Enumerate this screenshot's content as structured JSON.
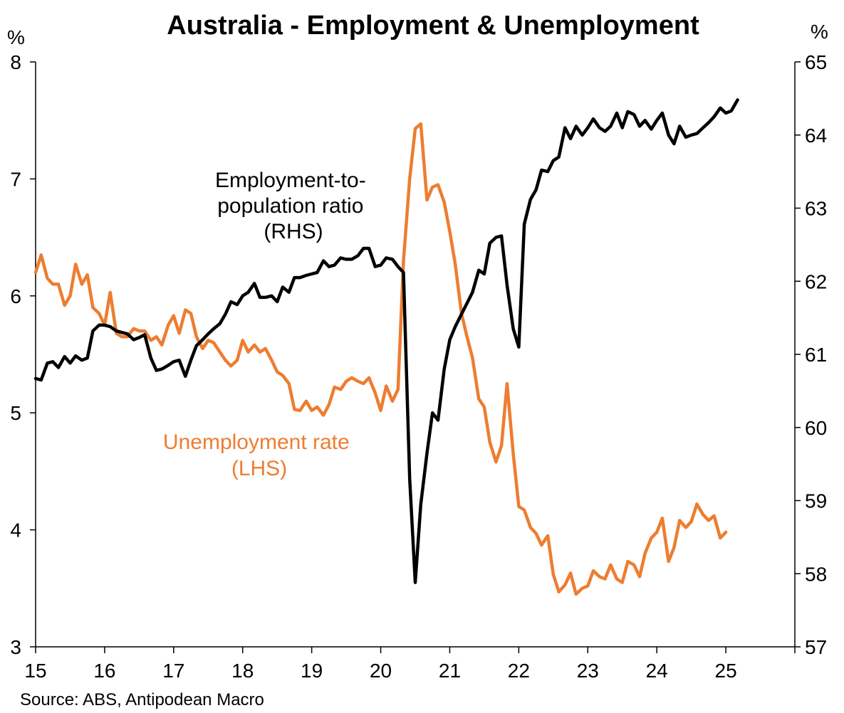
{
  "chart_data": {
    "type": "line",
    "title": "Australia - Employment & Unemployment",
    "source": "Source: ABS, Antipodean Macro",
    "left_axis": {
      "unit": "%",
      "ylim": [
        3,
        8
      ],
      "ticks": [
        3,
        4,
        5,
        6,
        7,
        8
      ]
    },
    "right_axis": {
      "unit": "%",
      "ylim": [
        57,
        65
      ],
      "ticks": [
        57,
        58,
        59,
        60,
        61,
        62,
        63,
        64,
        65
      ]
    },
    "x_axis": {
      "xlim": [
        15,
        26
      ],
      "tick_labels": [
        "15",
        "16",
        "17",
        "18",
        "19",
        "20",
        "21",
        "22",
        "23",
        "24",
        "25"
      ],
      "tick_values": [
        15,
        16,
        17,
        18,
        19,
        20,
        21,
        22,
        23,
        24,
        25
      ]
    },
    "grid": false,
    "series": [
      {
        "name": "Employment-to-population ratio (RHS)",
        "label_lines": [
          "Employment-to-",
          "population ratio",
          "(RHS)"
        ],
        "axis": "right",
        "color": "#000000",
        "points": [
          [
            15.0,
            60.67
          ],
          [
            15.08,
            60.65
          ],
          [
            15.17,
            60.88
          ],
          [
            15.25,
            60.9
          ],
          [
            15.33,
            60.82
          ],
          [
            15.42,
            60.97
          ],
          [
            15.5,
            60.88
          ],
          [
            15.58,
            60.98
          ],
          [
            15.67,
            60.92
          ],
          [
            15.75,
            60.95
          ],
          [
            15.83,
            61.32
          ],
          [
            15.92,
            61.4
          ],
          [
            16.0,
            61.4
          ],
          [
            16.08,
            61.38
          ],
          [
            16.17,
            61.32
          ],
          [
            16.25,
            61.3
          ],
          [
            16.33,
            61.28
          ],
          [
            16.42,
            61.2
          ],
          [
            16.5,
            61.23
          ],
          [
            16.58,
            61.27
          ],
          [
            16.67,
            60.95
          ],
          [
            16.75,
            60.78
          ],
          [
            16.83,
            60.8
          ],
          [
            16.92,
            60.85
          ],
          [
            17.0,
            60.9
          ],
          [
            17.08,
            60.92
          ],
          [
            17.17,
            60.7
          ],
          [
            17.25,
            60.92
          ],
          [
            17.33,
            61.12
          ],
          [
            17.42,
            61.2
          ],
          [
            17.5,
            61.28
          ],
          [
            17.58,
            61.35
          ],
          [
            17.67,
            61.42
          ],
          [
            17.75,
            61.55
          ],
          [
            17.83,
            61.72
          ],
          [
            17.92,
            61.68
          ],
          [
            18.0,
            61.8
          ],
          [
            18.08,
            61.85
          ],
          [
            18.17,
            61.97
          ],
          [
            18.25,
            61.78
          ],
          [
            18.33,
            61.78
          ],
          [
            18.42,
            61.8
          ],
          [
            18.5,
            61.72
          ],
          [
            18.58,
            61.92
          ],
          [
            18.67,
            61.85
          ],
          [
            18.75,
            62.05
          ],
          [
            18.83,
            62.05
          ],
          [
            18.92,
            62.08
          ],
          [
            19.0,
            62.1
          ],
          [
            19.08,
            62.12
          ],
          [
            19.17,
            62.28
          ],
          [
            19.25,
            62.2
          ],
          [
            19.33,
            62.22
          ],
          [
            19.42,
            62.32
          ],
          [
            19.5,
            62.3
          ],
          [
            19.58,
            62.3
          ],
          [
            19.67,
            62.35
          ],
          [
            19.75,
            62.45
          ],
          [
            19.83,
            62.45
          ],
          [
            19.92,
            62.2
          ],
          [
            20.0,
            62.22
          ],
          [
            20.08,
            62.32
          ],
          [
            20.17,
            62.3
          ],
          [
            20.25,
            62.2
          ],
          [
            20.33,
            62.12
          ],
          [
            20.42,
            59.3
          ],
          [
            20.5,
            57.88
          ],
          [
            20.58,
            58.95
          ],
          [
            20.67,
            59.65
          ],
          [
            20.75,
            60.2
          ],
          [
            20.83,
            60.1
          ],
          [
            20.92,
            60.8
          ],
          [
            21.0,
            61.2
          ],
          [
            21.08,
            61.38
          ],
          [
            21.17,
            61.55
          ],
          [
            21.25,
            61.7
          ],
          [
            21.33,
            61.85
          ],
          [
            21.42,
            62.15
          ],
          [
            21.5,
            62.1
          ],
          [
            21.58,
            62.52
          ],
          [
            21.67,
            62.6
          ],
          [
            21.75,
            62.62
          ],
          [
            21.83,
            61.95
          ],
          [
            21.92,
            61.35
          ],
          [
            22.0,
            61.1
          ],
          [
            22.08,
            62.78
          ],
          [
            22.17,
            63.12
          ],
          [
            22.25,
            63.25
          ],
          [
            22.33,
            63.52
          ],
          [
            22.42,
            63.5
          ],
          [
            22.5,
            63.65
          ],
          [
            22.58,
            63.7
          ],
          [
            22.67,
            64.1
          ],
          [
            22.75,
            63.95
          ],
          [
            22.83,
            64.12
          ],
          [
            22.92,
            64.0
          ],
          [
            23.0,
            64.1
          ],
          [
            23.08,
            64.22
          ],
          [
            23.17,
            64.1
          ],
          [
            23.25,
            64.05
          ],
          [
            23.33,
            64.12
          ],
          [
            23.42,
            64.3
          ],
          [
            23.5,
            64.1
          ],
          [
            23.58,
            64.32
          ],
          [
            23.67,
            64.28
          ],
          [
            23.75,
            64.12
          ],
          [
            23.83,
            64.2
          ],
          [
            23.92,
            64.08
          ],
          [
            24.0,
            64.2
          ],
          [
            24.08,
            64.3
          ],
          [
            24.17,
            64.0
          ],
          [
            24.25,
            63.88
          ],
          [
            24.33,
            64.12
          ],
          [
            24.42,
            63.97
          ],
          [
            24.5,
            64.0
          ],
          [
            24.58,
            64.02
          ],
          [
            24.67,
            64.1
          ],
          [
            24.75,
            64.17
          ],
          [
            24.83,
            64.25
          ],
          [
            24.92,
            64.37
          ],
          [
            25.0,
            64.3
          ],
          [
            25.08,
            64.33
          ],
          [
            25.17,
            64.48
          ]
        ]
      },
      {
        "name": "Unemployment rate (LHS)",
        "label_lines": [
          "Unemployment rate",
          "(LHS)"
        ],
        "axis": "left",
        "color": "#ED7D31",
        "points": [
          [
            15.0,
            6.2
          ],
          [
            15.08,
            6.35
          ],
          [
            15.17,
            6.15
          ],
          [
            15.25,
            6.1
          ],
          [
            15.33,
            6.1
          ],
          [
            15.42,
            5.92
          ],
          [
            15.5,
            6.0
          ],
          [
            15.58,
            6.27
          ],
          [
            15.67,
            6.1
          ],
          [
            15.75,
            6.18
          ],
          [
            15.83,
            5.9
          ],
          [
            15.92,
            5.85
          ],
          [
            16.0,
            5.75
          ],
          [
            16.08,
            6.03
          ],
          [
            16.17,
            5.68
          ],
          [
            16.25,
            5.65
          ],
          [
            16.33,
            5.65
          ],
          [
            16.42,
            5.72
          ],
          [
            16.5,
            5.7
          ],
          [
            16.58,
            5.7
          ],
          [
            16.67,
            5.62
          ],
          [
            16.75,
            5.65
          ],
          [
            16.83,
            5.58
          ],
          [
            16.92,
            5.75
          ],
          [
            17.0,
            5.83
          ],
          [
            17.08,
            5.68
          ],
          [
            17.17,
            5.88
          ],
          [
            17.25,
            5.85
          ],
          [
            17.33,
            5.65
          ],
          [
            17.42,
            5.55
          ],
          [
            17.5,
            5.62
          ],
          [
            17.58,
            5.6
          ],
          [
            17.67,
            5.52
          ],
          [
            17.75,
            5.45
          ],
          [
            17.83,
            5.4
          ],
          [
            17.92,
            5.45
          ],
          [
            18.0,
            5.62
          ],
          [
            18.08,
            5.52
          ],
          [
            18.17,
            5.58
          ],
          [
            18.25,
            5.52
          ],
          [
            18.33,
            5.55
          ],
          [
            18.42,
            5.45
          ],
          [
            18.5,
            5.35
          ],
          [
            18.58,
            5.32
          ],
          [
            18.67,
            5.25
          ],
          [
            18.75,
            5.03
          ],
          [
            18.83,
            5.02
          ],
          [
            18.92,
            5.1
          ],
          [
            19.0,
            5.02
          ],
          [
            19.08,
            5.05
          ],
          [
            19.17,
            4.98
          ],
          [
            19.25,
            5.07
          ],
          [
            19.33,
            5.22
          ],
          [
            19.42,
            5.2
          ],
          [
            19.5,
            5.27
          ],
          [
            19.58,
            5.3
          ],
          [
            19.67,
            5.27
          ],
          [
            19.75,
            5.25
          ],
          [
            19.83,
            5.3
          ],
          [
            19.92,
            5.17
          ],
          [
            20.0,
            5.02
          ],
          [
            20.08,
            5.23
          ],
          [
            20.17,
            5.1
          ],
          [
            20.25,
            5.2
          ],
          [
            20.33,
            6.3
          ],
          [
            20.42,
            7.0
          ],
          [
            20.5,
            7.43
          ],
          [
            20.58,
            7.47
          ],
          [
            20.67,
            6.82
          ],
          [
            20.75,
            6.93
          ],
          [
            20.83,
            6.95
          ],
          [
            20.92,
            6.8
          ],
          [
            21.0,
            6.55
          ],
          [
            21.08,
            6.27
          ],
          [
            21.17,
            5.85
          ],
          [
            21.25,
            5.65
          ],
          [
            21.33,
            5.47
          ],
          [
            21.42,
            5.12
          ],
          [
            21.5,
            5.05
          ],
          [
            21.58,
            4.75
          ],
          [
            21.67,
            4.58
          ],
          [
            21.75,
            4.72
          ],
          [
            21.83,
            5.25
          ],
          [
            21.92,
            4.65
          ],
          [
            22.0,
            4.2
          ],
          [
            22.08,
            4.17
          ],
          [
            22.17,
            4.02
          ],
          [
            22.25,
            3.97
          ],
          [
            22.33,
            3.87
          ],
          [
            22.42,
            3.95
          ],
          [
            22.5,
            3.62
          ],
          [
            22.58,
            3.47
          ],
          [
            22.67,
            3.53
          ],
          [
            22.75,
            3.63
          ],
          [
            22.83,
            3.45
          ],
          [
            22.92,
            3.5
          ],
          [
            23.0,
            3.52
          ],
          [
            23.08,
            3.65
          ],
          [
            23.17,
            3.6
          ],
          [
            23.25,
            3.58
          ],
          [
            23.33,
            3.7
          ],
          [
            23.42,
            3.58
          ],
          [
            23.5,
            3.55
          ],
          [
            23.58,
            3.73
          ],
          [
            23.67,
            3.7
          ],
          [
            23.75,
            3.6
          ],
          [
            23.83,
            3.8
          ],
          [
            23.92,
            3.93
          ],
          [
            24.0,
            3.98
          ],
          [
            24.08,
            4.1
          ],
          [
            24.17,
            3.73
          ],
          [
            24.25,
            3.85
          ],
          [
            24.33,
            4.08
          ],
          [
            24.42,
            4.02
          ],
          [
            24.5,
            4.07
          ],
          [
            24.58,
            4.22
          ],
          [
            24.67,
            4.13
          ],
          [
            24.75,
            4.08
          ],
          [
            24.83,
            4.12
          ],
          [
            24.92,
            3.93
          ],
          [
            25.0,
            3.98
          ]
        ]
      }
    ]
  }
}
